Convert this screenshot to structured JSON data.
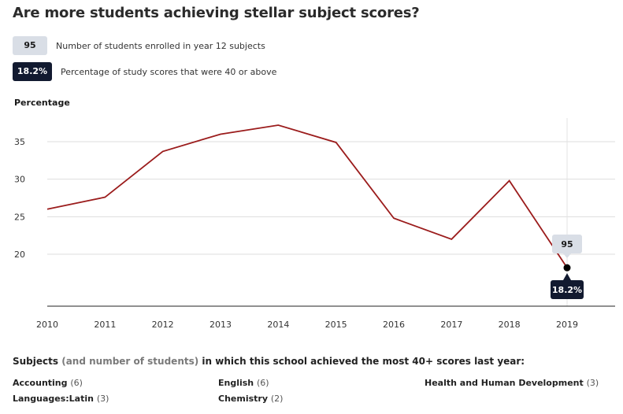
{
  "title": "Are more students achieving stellar subject scores?",
  "legend": {
    "students_value": "95",
    "students_text": "Number of students enrolled in year 12 subjects",
    "pct_value": "18.2%",
    "pct_text": "Percentage of study scores that were 40 or above"
  },
  "colors": {
    "line": "#9b1c1c",
    "badge_dark": "#121a30",
    "badge_light": "#d9dee6",
    "grid": "#dddddd"
  },
  "chart_data": {
    "type": "line",
    "title": "Are more students achieving stellar subject scores?",
    "xlabel": "",
    "ylabel": "Percentage",
    "x": [
      "2010",
      "2011",
      "2012",
      "2013",
      "2014",
      "2015",
      "2016",
      "2017",
      "2018",
      "2019"
    ],
    "series": [
      {
        "values": [
          26.0,
          27.6,
          33.7,
          36.0,
          37.2,
          34.9,
          24.8,
          22.0,
          29.8,
          18.2
        ]
      }
    ],
    "yticks": [
      "20",
      "25",
      "30",
      "35"
    ],
    "ylim": [
      13,
      39
    ],
    "grid": true,
    "highlight": {
      "x": "2019",
      "students_label": "95",
      "value_label": "18.2%"
    }
  },
  "subjects": {
    "heading_bold1": "Subjects",
    "heading_muted": "(and number of students)",
    "heading_bold2": "in which this school achieved the most 40+ scores last year:",
    "items": [
      {
        "name": "Accounting",
        "count": "(6)"
      },
      {
        "name": "English",
        "count": "(6)"
      },
      {
        "name": "Health and Human Development",
        "count": "(3)"
      },
      {
        "name": "Languages:Latin",
        "count": "(3)"
      },
      {
        "name": "Chemistry",
        "count": "(2)"
      }
    ]
  }
}
